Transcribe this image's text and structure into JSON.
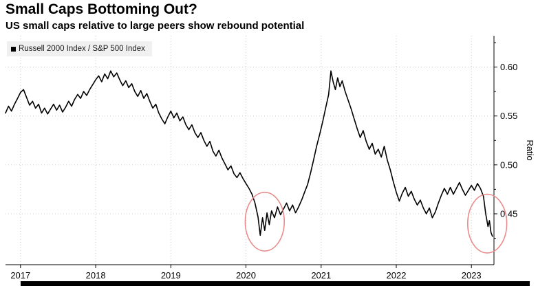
{
  "header": {
    "title": "Small Caps Bottoming Out?",
    "subtitle": "US small caps relative to large peers show rebound potential"
  },
  "legend": {
    "label": "Russell 2000 Index / S&P 500 Index"
  },
  "colors": {
    "background": "#ffffff",
    "legend_bg": "#f0f0f0",
    "grid": "#c9c9c9",
    "axis": "#000000",
    "bottom_bar": "#000000"
  },
  "chart_data": {
    "type": "line",
    "title": "Small Caps Bottoming Out?",
    "subtitle": "US small caps relative to large peers show rebound potential",
    "series_name": "Russell 2000 Index / S&P 500 Index",
    "ylabel": "Ratio",
    "xlabel": "",
    "grid": "dotted",
    "legend_position": "top-left",
    "line_color": "#000000",
    "annotation_color": "#e98b8b",
    "xlim": [
      2016.8,
      2023.3
    ],
    "ylim": [
      0.398,
      0.632
    ],
    "xticks": [
      2017,
      2018,
      2019,
      2020,
      2021,
      2022,
      2023
    ],
    "xtick_labels": [
      "2017",
      "2018",
      "2019",
      "2020",
      "2021",
      "2022",
      "2023"
    ],
    "yticks": [
      0.45,
      0.5,
      0.55,
      0.6
    ],
    "ytick_labels": [
      "0.45",
      "0.50",
      "0.55",
      "0.60"
    ],
    "yticks_minor": [
      0.425,
      0.475,
      0.525,
      0.575,
      0.625
    ],
    "x": [
      2016.8,
      2016.84,
      2016.88,
      2016.92,
      2016.96,
      2017.0,
      2017.04,
      2017.08,
      2017.12,
      2017.16,
      2017.2,
      2017.24,
      2017.28,
      2017.32,
      2017.36,
      2017.4,
      2017.44,
      2017.48,
      2017.52,
      2017.56,
      2017.6,
      2017.64,
      2017.68,
      2017.72,
      2017.76,
      2017.8,
      2017.84,
      2017.88,
      2017.92,
      2017.96,
      2018.0,
      2018.04,
      2018.08,
      2018.12,
      2018.16,
      2018.2,
      2018.24,
      2018.28,
      2018.32,
      2018.36,
      2018.4,
      2018.44,
      2018.48,
      2018.52,
      2018.56,
      2018.6,
      2018.64,
      2018.68,
      2018.72,
      2018.76,
      2018.8,
      2018.84,
      2018.88,
      2018.92,
      2018.96,
      2019.0,
      2019.04,
      2019.08,
      2019.12,
      2019.16,
      2019.2,
      2019.24,
      2019.28,
      2019.32,
      2019.36,
      2019.4,
      2019.44,
      2019.48,
      2019.52,
      2019.56,
      2019.6,
      2019.64,
      2019.68,
      2019.72,
      2019.76,
      2019.8,
      2019.84,
      2019.88,
      2019.92,
      2019.96,
      2020.0,
      2020.04,
      2020.08,
      2020.12,
      2020.16,
      2020.19,
      2020.22,
      2020.25,
      2020.28,
      2020.31,
      2020.34,
      2020.38,
      2020.42,
      2020.46,
      2020.5,
      2020.54,
      2020.58,
      2020.62,
      2020.66,
      2020.7,
      2020.74,
      2020.78,
      2020.82,
      2020.86,
      2020.9,
      2020.94,
      2020.98,
      2021.02,
      2021.06,
      2021.1,
      2021.13,
      2021.16,
      2021.19,
      2021.22,
      2021.25,
      2021.28,
      2021.32,
      2021.36,
      2021.4,
      2021.44,
      2021.48,
      2021.52,
      2021.56,
      2021.6,
      2021.64,
      2021.68,
      2021.72,
      2021.76,
      2021.8,
      2021.84,
      2021.88,
      2021.92,
      2021.96,
      2022.0,
      2022.04,
      2022.08,
      2022.12,
      2022.16,
      2022.2,
      2022.24,
      2022.28,
      2022.32,
      2022.36,
      2022.4,
      2022.44,
      2022.48,
      2022.52,
      2022.56,
      2022.6,
      2022.64,
      2022.68,
      2022.72,
      2022.76,
      2022.8,
      2022.84,
      2022.88,
      2022.92,
      2022.96,
      2023.0,
      2023.04,
      2023.08,
      2023.12,
      2023.16,
      2023.19,
      2023.22,
      2023.24,
      2023.26,
      2023.28
    ],
    "values": [
      0.553,
      0.56,
      0.555,
      0.562,
      0.568,
      0.574,
      0.577,
      0.569,
      0.561,
      0.565,
      0.558,
      0.562,
      0.553,
      0.558,
      0.552,
      0.557,
      0.562,
      0.556,
      0.561,
      0.554,
      0.559,
      0.565,
      0.56,
      0.567,
      0.572,
      0.568,
      0.575,
      0.571,
      0.577,
      0.582,
      0.587,
      0.591,
      0.585,
      0.593,
      0.588,
      0.596,
      0.59,
      0.594,
      0.587,
      0.581,
      0.586,
      0.579,
      0.583,
      0.575,
      0.57,
      0.576,
      0.568,
      0.573,
      0.565,
      0.558,
      0.562,
      0.553,
      0.547,
      0.542,
      0.549,
      0.555,
      0.548,
      0.553,
      0.545,
      0.549,
      0.541,
      0.536,
      0.541,
      0.533,
      0.528,
      0.533,
      0.525,
      0.519,
      0.524,
      0.514,
      0.509,
      0.515,
      0.507,
      0.501,
      0.495,
      0.499,
      0.491,
      0.487,
      0.492,
      0.486,
      0.481,
      0.476,
      0.47,
      0.461,
      0.447,
      0.428,
      0.446,
      0.433,
      0.451,
      0.439,
      0.453,
      0.446,
      0.457,
      0.449,
      0.455,
      0.461,
      0.453,
      0.459,
      0.451,
      0.457,
      0.464,
      0.472,
      0.48,
      0.492,
      0.505,
      0.519,
      0.531,
      0.544,
      0.558,
      0.572,
      0.596,
      0.585,
      0.577,
      0.589,
      0.58,
      0.586,
      0.575,
      0.566,
      0.557,
      0.547,
      0.537,
      0.528,
      0.535,
      0.524,
      0.516,
      0.522,
      0.511,
      0.516,
      0.508,
      0.519,
      0.505,
      0.495,
      0.483,
      0.472,
      0.463,
      0.471,
      0.477,
      0.468,
      0.473,
      0.465,
      0.459,
      0.464,
      0.456,
      0.45,
      0.456,
      0.446,
      0.452,
      0.461,
      0.469,
      0.476,
      0.47,
      0.477,
      0.47,
      0.476,
      0.482,
      0.475,
      0.469,
      0.474,
      0.479,
      0.474,
      0.481,
      0.476,
      0.468,
      0.45,
      0.437,
      0.443,
      0.431,
      0.427
    ],
    "annotations": [
      {
        "shape": "ellipse",
        "name": "circled-low-2020",
        "cx": 2020.25,
        "cy": 0.442,
        "rx": 0.26,
        "ry": 0.03
      },
      {
        "shape": "ellipse",
        "name": "circled-low-2023",
        "cx": 2023.21,
        "cy": 0.44,
        "rx": 0.26,
        "ry": 0.03
      }
    ]
  }
}
